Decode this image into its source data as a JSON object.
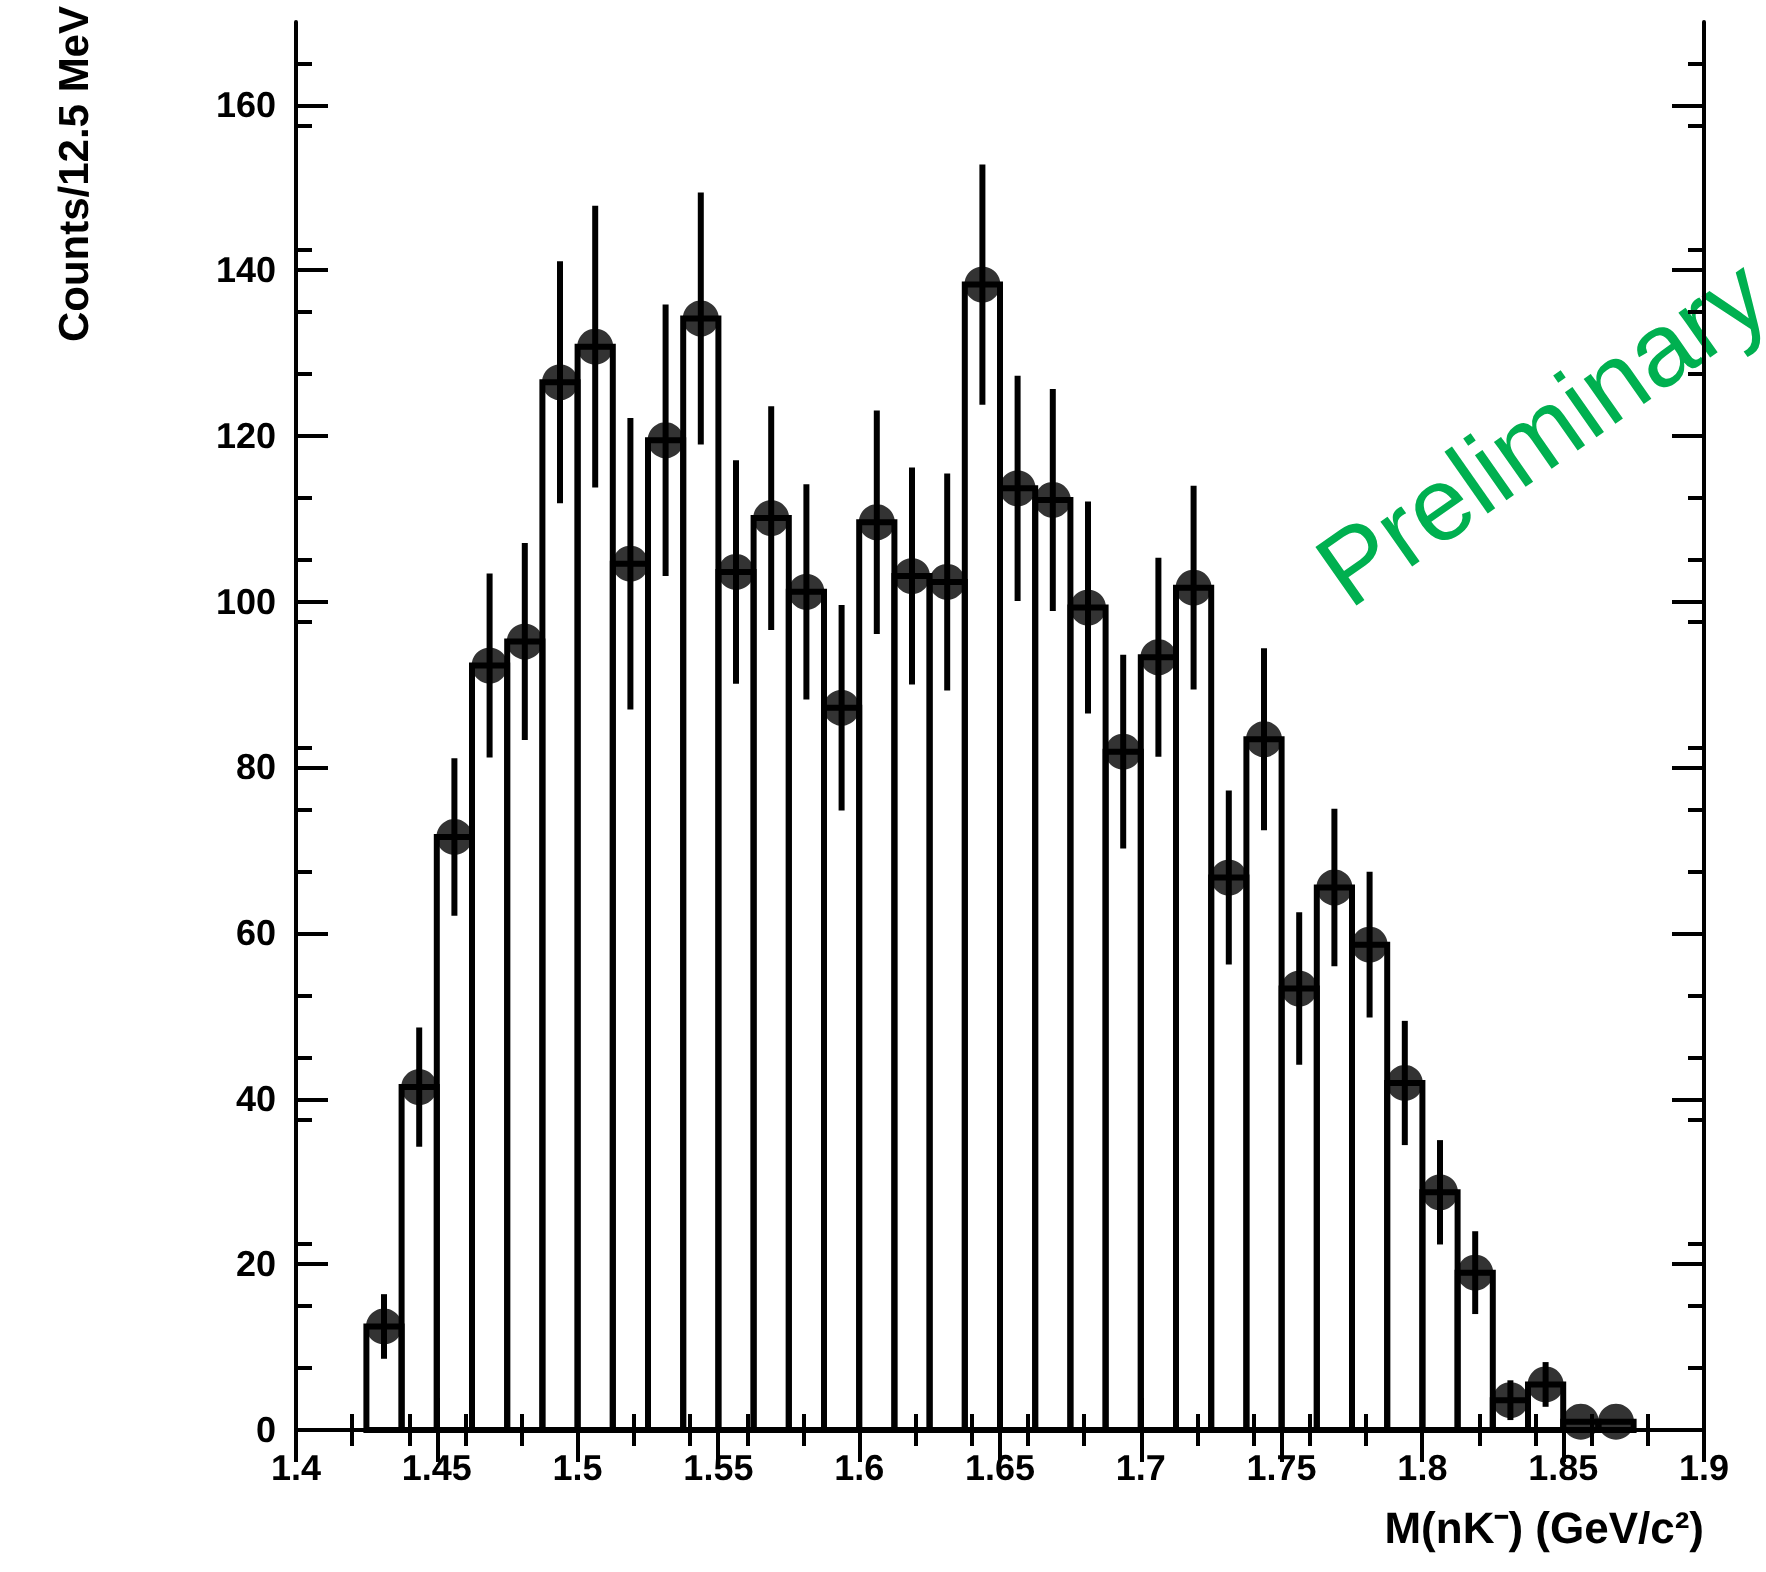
{
  "chart_data": {
    "type": "histogram",
    "xlabel": "M(nK⁻) (GeV/c²)",
    "ylabel": "Counts/12.5 MeV",
    "annotations": [
      "Preliminary"
    ],
    "bins": [
      1.425,
      1.4375,
      1.45,
      1.4625,
      1.475,
      1.4875,
      1.5,
      1.5125,
      1.525,
      1.5375,
      1.55,
      1.5625,
      1.575,
      1.5875,
      1.6,
      1.6125,
      1.625,
      1.6375,
      1.65,
      1.6625,
      1.675,
      1.6875,
      1.7,
      1.7125,
      1.725,
      1.7375,
      1.75,
      1.7625,
      1.775,
      1.7875,
      1.8,
      1.8125,
      1.825,
      1.8375,
      1.85,
      1.8625,
      1.875
    ],
    "series": [
      {
        "color": "#000000",
        "values": [
          12.5,
          41.4,
          71.6,
          92.3,
          95.2,
          126.5,
          130.8,
          104.6,
          119.5,
          134.2,
          103.6,
          110.1,
          101.2,
          87.2,
          109.6,
          103.1,
          102.4,
          138.3,
          113.7,
          112.3,
          99.3,
          81.9,
          93.3,
          101.7,
          66.7,
          83.4,
          53.3,
          65.5,
          58.6,
          41.9,
          28.7,
          19,
          3.6,
          5.5,
          1,
          1
        ]
      },
      {
        "type": "scatter",
        "color": "#000000",
        "marker": "circle",
        "x": [
          1.43125,
          1.44375,
          1.45625,
          1.46875,
          1.48125,
          1.49375,
          1.50625,
          1.51875,
          1.53125,
          1.54375,
          1.55625,
          1.56875,
          1.58125,
          1.59375,
          1.60625,
          1.61875,
          1.63125,
          1.64375,
          1.65625,
          1.66875,
          1.68125,
          1.69375,
          1.70625,
          1.71875,
          1.73125,
          1.74375,
          1.75625,
          1.76875,
          1.78125,
          1.79375,
          1.80625,
          1.81875,
          1.83125,
          1.84375,
          1.85625,
          1.86875
        ],
        "values": [
          12.5,
          41.4,
          71.6,
          92.3,
          95.2,
          126.5,
          130.8,
          104.6,
          119.5,
          134.2,
          103.6,
          110.1,
          101.2,
          87.2,
          109.6,
          103.1,
          102.4,
          138.3,
          113.7,
          112.3,
          99.3,
          81.9,
          93.3,
          101.7,
          66.7,
          83.4,
          53.3,
          65.5,
          58.6,
          41.9,
          28.7,
          19,
          3.6,
          5.5,
          1,
          1
        ],
        "errors": [
          3.9,
          7.2,
          9.5,
          11.1,
          11.9,
          14.6,
          17,
          17.6,
          16.4,
          15.2,
          13.5,
          13.5,
          13,
          12.4,
          13.5,
          13.1,
          13.1,
          14.5,
          13.6,
          13.4,
          12.8,
          11.7,
          12,
          12.3,
          10.5,
          11,
          9.2,
          9.5,
          8.8,
          7.5,
          6.3,
          5,
          2.4,
          2.7,
          null,
          null
        ]
      }
    ],
    "xlim": [
      1.4,
      1.9
    ],
    "xticks": [
      1.4,
      1.45,
      1.5,
      1.55,
      1.6,
      1.65,
      1.7,
      1.75,
      1.8,
      1.85,
      1.9
    ],
    "ylim": [
      0,
      170
    ],
    "yticks": [
      0,
      20,
      40,
      60,
      80,
      100,
      120,
      140,
      160
    ],
    "grid": false
  }
}
